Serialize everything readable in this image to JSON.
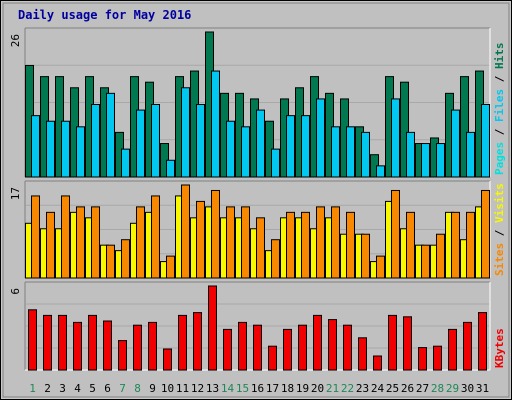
{
  "chart_data": {
    "type": "bar",
    "title": "Daily usage for May 2016",
    "colors": {
      "title": "#0000a0",
      "hits": "#007850",
      "files": "#00c8f0",
      "pages": "#00e0e0",
      "visits": "#f8f800",
      "sites": "#f88800",
      "kbytes": "#f00000",
      "weekday_tick": "#007850",
      "weekend_tick": "#208858",
      "plot_bg": "#c0c0c0"
    },
    "x": [
      "1",
      "2",
      "3",
      "4",
      "5",
      "6",
      "7",
      "8",
      "9",
      "10",
      "11",
      "12",
      "13",
      "14",
      "15",
      "16",
      "17",
      "18",
      "19",
      "20",
      "21",
      "22",
      "23",
      "24",
      "25",
      "26",
      "27",
      "28",
      "29",
      "30",
      "31"
    ],
    "weekend_days": [
      1,
      7,
      8,
      14,
      15,
      21,
      22,
      28,
      29
    ],
    "panels": [
      {
        "id": "hits-files-pages",
        "ymax_label": "26",
        "ymax": 26,
        "legend": [
          {
            "text": "Pages",
            "color": "#00e0e0"
          },
          {
            "text": " / ",
            "color": "#000000"
          },
          {
            "text": "Files",
            "color": "#00c8f0"
          },
          {
            "text": " / ",
            "color": "#000000"
          },
          {
            "text": "Hits",
            "color": "#007850"
          }
        ],
        "series": [
          {
            "name": "Hits",
            "color": "#007850",
            "values": [
              20,
              18,
              18,
              16,
              18,
              16,
              8,
              18,
              17,
              6,
              18,
              19,
              26,
              15,
              15,
              14,
              10,
              14,
              16,
              18,
              15,
              14,
              9,
              4,
              18,
              17,
              6,
              7,
              15,
              18,
              19
            ]
          },
          {
            "name": "Files",
            "color": "#00c8f0",
            "values": [
              11,
              10,
              10,
              9,
              13,
              15,
              5,
              12,
              13,
              3,
              16,
              13,
              19,
              10,
              9,
              12,
              5,
              11,
              11,
              14,
              9,
              9,
              8,
              2,
              14,
              8,
              6,
              6,
              12,
              8,
              13
            ]
          },
          {
            "name": "Pages",
            "color": "#00e0e0",
            "values": [
              11,
              10,
              10,
              9,
              13,
              15,
              5,
              12,
              13,
              3,
              16,
              13,
              19,
              10,
              9,
              12,
              5,
              11,
              11,
              14,
              9,
              9,
              8,
              2,
              14,
              8,
              6,
              6,
              12,
              8,
              13
            ]
          }
        ]
      },
      {
        "id": "visits-sites",
        "ymax_label": "17",
        "ymax": 17,
        "legend": [
          {
            "text": "Sites",
            "color": "#f88800"
          },
          {
            "text": " / ",
            "color": "#000000"
          },
          {
            "text": "Visits",
            "color": "#f8f800"
          }
        ],
        "series": [
          {
            "name": "Visits",
            "color": "#f8f800",
            "values": [
              10,
              9,
              9,
              12,
              11,
              6,
              5,
              10,
              12,
              3,
              15,
              11,
              13,
              11,
              11,
              9,
              5,
              11,
              11,
              9,
              11,
              8,
              8,
              3,
              14,
              9,
              6,
              6,
              12,
              7,
              13
            ]
          },
          {
            "name": "Sites",
            "color": "#f88800",
            "values": [
              15,
              12,
              15,
              13,
              13,
              6,
              7,
              13,
              15,
              4,
              17,
              14,
              16,
              13,
              13,
              11,
              7,
              12,
              12,
              13,
              13,
              12,
              8,
              4,
              16,
              12,
              6,
              8,
              12,
              12,
              16
            ]
          }
        ]
      },
      {
        "id": "kbytes",
        "ymax_label": "6",
        "ymax": 6,
        "legend": [
          {
            "text": "KBytes",
            "color": "#f00000"
          }
        ],
        "series": [
          {
            "name": "KBytes",
            "color": "#f00000",
            "values": [
              4.3,
              3.9,
              3.9,
              3.4,
              3.9,
              3.5,
              2.1,
              3.2,
              3.4,
              1.5,
              3.9,
              4.1,
              6.0,
              2.9,
              3.4,
              3.2,
              1.7,
              2.9,
              3.2,
              3.9,
              3.6,
              3.2,
              2.3,
              1.0,
              3.9,
              3.8,
              1.6,
              1.7,
              2.9,
              3.4,
              4.1
            ]
          }
        ]
      }
    ]
  }
}
